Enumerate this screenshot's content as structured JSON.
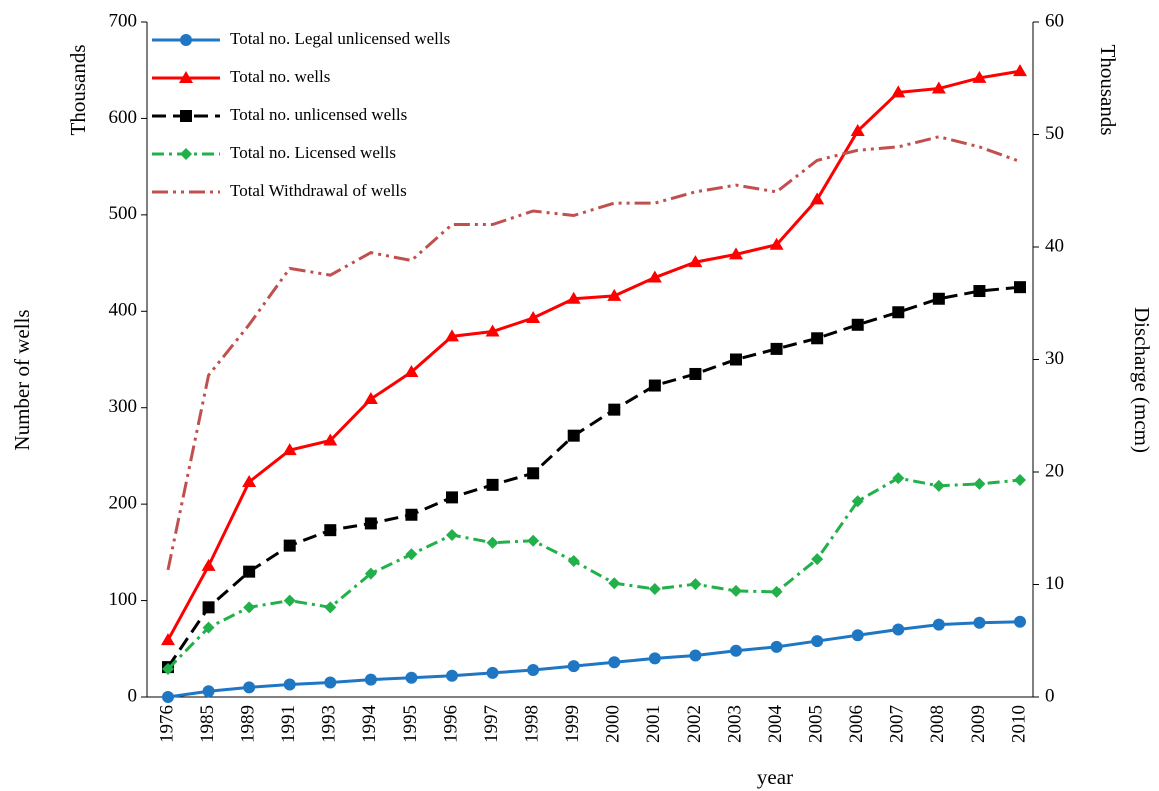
{
  "chart_data": {
    "type": "line",
    "xlabel": "year",
    "ylabel": "Number of wells",
    "y_unit": "Thousands",
    "y2label": "Discharge (mcm)",
    "y2_unit": "Thousands",
    "categories": [
      "1976",
      "1985",
      "1989",
      "1991",
      "1993",
      "1994",
      "1995",
      "1996",
      "1997",
      "1998",
      "1999",
      "2000",
      "2001",
      "2002",
      "2003",
      "2004",
      "2005",
      "2006",
      "2007",
      "2008",
      "2009",
      "2010"
    ],
    "ylim": [
      0,
      700
    ],
    "yticks": [
      0,
      100,
      200,
      300,
      400,
      500,
      600,
      700
    ],
    "y2lim": [
      0,
      60
    ],
    "y2ticks": [
      0,
      10,
      20,
      30,
      40,
      50,
      60
    ],
    "legend": "upper left",
    "series": [
      {
        "name": "Total no. Legal unlicensed wells",
        "color": "#1f77c4",
        "marker": "circle",
        "dash": "solid",
        "values": [
          0,
          6,
          10,
          13,
          15,
          18,
          20,
          22,
          25,
          28,
          32,
          36,
          40,
          43,
          48,
          52,
          58,
          64,
          70,
          75,
          77,
          78
        ]
      },
      {
        "name": "Total no. wells",
        "color": "#ff0000",
        "marker": "triangle",
        "dash": "solid",
        "values": [
          59,
          136,
          223,
          256,
          266,
          309,
          337,
          374,
          379,
          393,
          413,
          416,
          435,
          451,
          459,
          469,
          516,
          587,
          627,
          631,
          642,
          649
        ]
      },
      {
        "name": "Total no. unlicensed wells",
        "color": "#000000",
        "marker": "square",
        "dash": "dashed",
        "values": [
          31,
          93,
          130,
          157,
          173,
          180,
          189,
          207,
          220,
          232,
          271,
          298,
          323,
          335,
          350,
          361,
          372,
          386,
          399,
          413,
          421,
          425
        ]
      },
      {
        "name": "Total no. Licensed wells",
        "color": "#22b04a",
        "marker": "diamond",
        "dash": "dashdot",
        "values": [
          29,
          72,
          93,
          100,
          93,
          128,
          148,
          168,
          160,
          162,
          141,
          118,
          112,
          117,
          110,
          109,
          143,
          203,
          227,
          219,
          221,
          225
        ]
      },
      {
        "name": "Total Withdrawal  of wells",
        "color": "#c0504d",
        "marker": "none",
        "dash": "dashdotdot",
        "axis": "y2",
        "values": [
          11.3,
          28.6,
          33.1,
          38.1,
          37.5,
          39.5,
          38.8,
          42,
          42,
          43.2,
          42.8,
          43.9,
          43.9,
          44.9,
          45.5,
          44.9,
          47.7,
          48.6,
          48.9,
          49.8,
          48.9,
          47.6
        ]
      }
    ]
  }
}
